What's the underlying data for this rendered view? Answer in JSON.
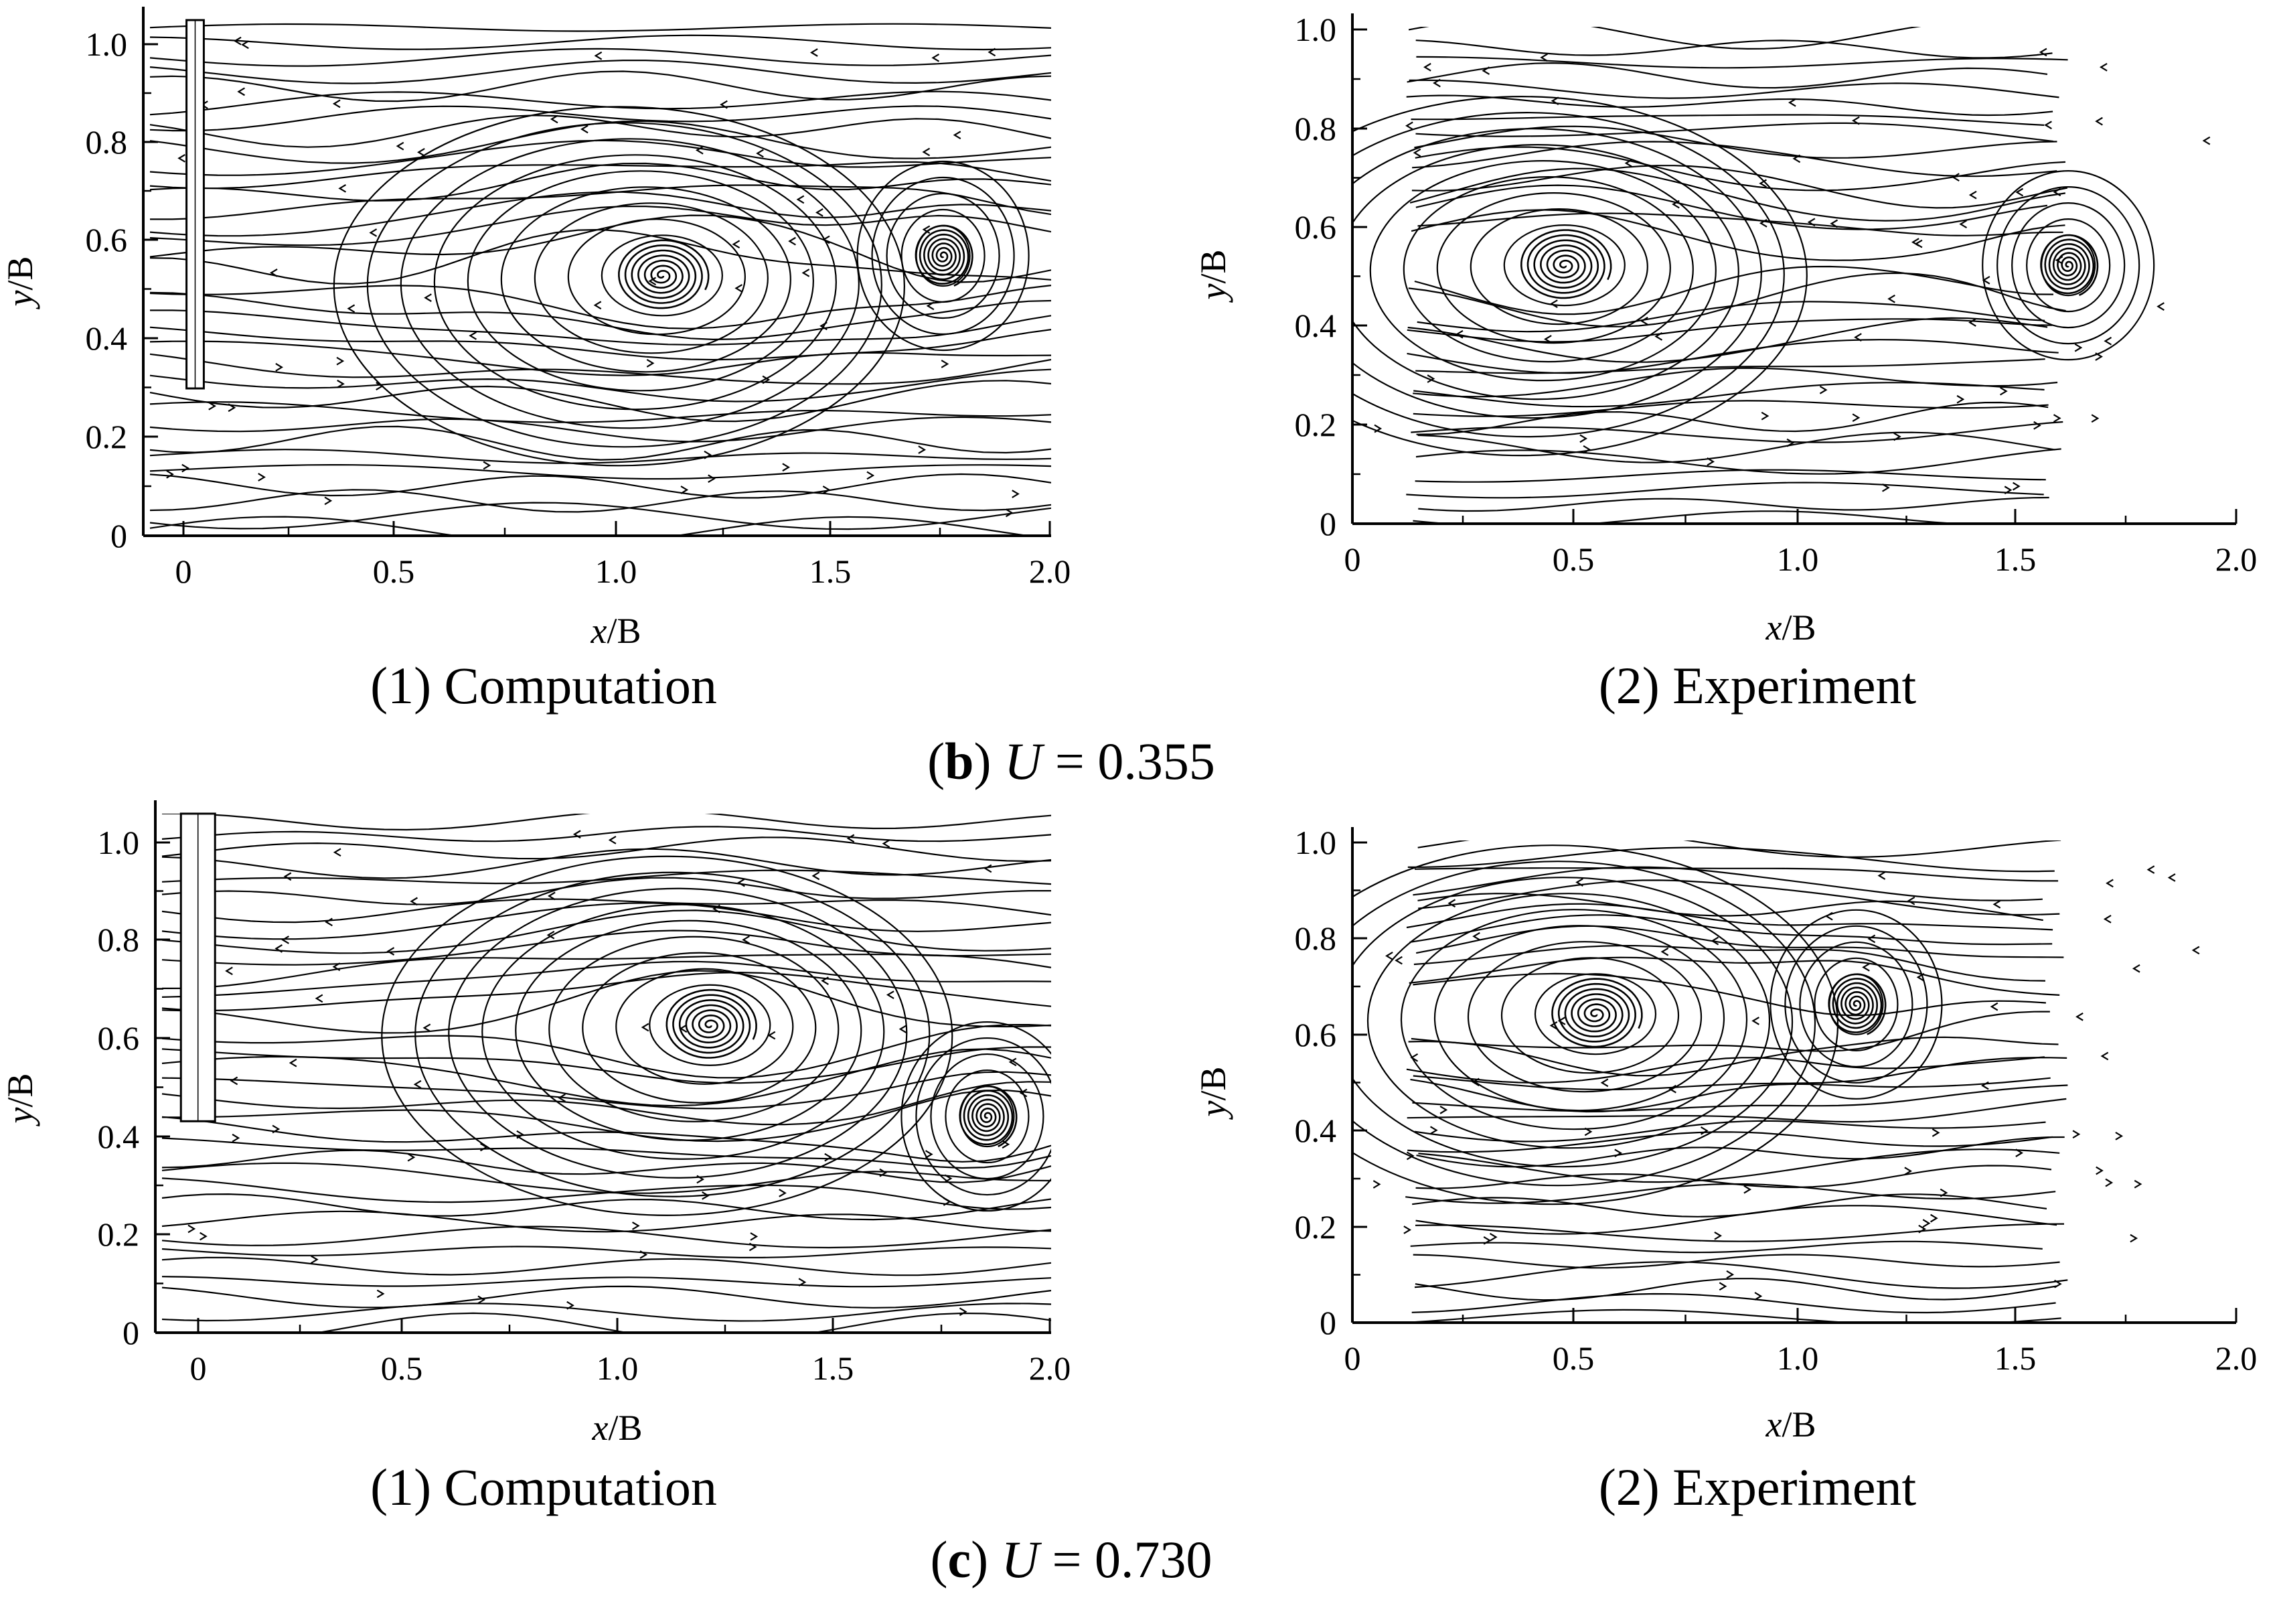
{
  "figure": {
    "panels": [
      {
        "id": "b1",
        "caption": "(1) Computation",
        "xlabel_italic": "x",
        "xlabel_rest": "/B",
        "ylabel_italic": "y",
        "ylabel_rest": "/B",
        "xticks": [
          "0",
          "0.5",
          "1.0",
          "1.5",
          "2.0"
        ],
        "yticks": [
          "0",
          "0.2",
          "0.4",
          "0.6",
          "0.8",
          "1.0"
        ]
      },
      {
        "id": "b2",
        "caption": "(2) Experiment",
        "xlabel_italic": "x",
        "xlabel_rest": "/B",
        "ylabel_italic": "y",
        "ylabel_rest": "/B",
        "xticks": [
          "0",
          "0.5",
          "1.0",
          "1.5",
          "2.0"
        ],
        "yticks": [
          "0",
          "0.2",
          "0.4",
          "0.6",
          "0.8",
          "1.0"
        ]
      },
      {
        "id": "c1",
        "caption": "(1) Computation",
        "xlabel_italic": "x",
        "xlabel_rest": "/B",
        "ylabel_italic": "y",
        "ylabel_rest": "/B",
        "xticks": [
          "0",
          "0.5",
          "1.0",
          "1.5",
          "2.0"
        ],
        "yticks": [
          "0",
          "0.2",
          "0.4",
          "0.6",
          "0.8",
          "1.0"
        ]
      },
      {
        "id": "c2",
        "caption": "(2) Experiment",
        "xlabel_italic": "x",
        "xlabel_rest": "/B",
        "ylabel_italic": "y",
        "ylabel_rest": "/B",
        "xticks": [
          "0",
          "0.5",
          "1.0",
          "1.5",
          "2.0"
        ],
        "yticks": [
          "0",
          "0.2",
          "0.4",
          "0.6",
          "0.8",
          "1.0"
        ]
      }
    ],
    "group_captions": [
      {
        "letter": "b",
        "paren_open": "(",
        "paren_close": ")",
        "var": "U",
        "eq": " = 0.355"
      },
      {
        "letter": "c",
        "paren_open": "(",
        "paren_close": ")",
        "var": "U",
        "eq": " = 0.730"
      }
    ]
  },
  "chart_data": [
    {
      "type": "streamline",
      "title": "(1) Computation",
      "condition": "U = 0.355",
      "xlabel": "x/B",
      "ylabel": "y/B",
      "xlim": [
        -0.1,
        2.0
      ],
      "ylim": [
        0,
        1.05
      ],
      "plate": {
        "x": [
          0.0,
          0.04
        ],
        "y_bottom": 0.3,
        "y_top": 1.05
      },
      "vortex_centers": [
        [
          1.1,
          0.53
        ],
        [
          1.75,
          0.57
        ]
      ]
    },
    {
      "type": "streamline",
      "title": "(2) Experiment",
      "condition": "U = 0.355",
      "xlabel": "x/B",
      "ylabel": "y/B",
      "xlim": [
        0,
        2.0
      ],
      "ylim": [
        0,
        1.0
      ],
      "vortex_centers": [
        [
          0.48,
          0.52
        ],
        [
          1.62,
          0.52
        ]
      ]
    },
    {
      "type": "streamline",
      "title": "(1) Computation",
      "condition": "U = 0.730",
      "xlabel": "x/B",
      "ylabel": "y/B",
      "xlim": [
        -0.1,
        2.0
      ],
      "ylim": [
        0,
        1.08
      ],
      "plate": {
        "x": [
          -0.04,
          0.04
        ],
        "y_bottom": 0.44,
        "y_top": 1.08
      },
      "vortex_centers": [
        [
          1.2,
          0.64
        ],
        [
          1.85,
          0.45
        ]
      ]
    },
    {
      "type": "streamline",
      "title": "(2) Experiment",
      "condition": "U = 0.730",
      "xlabel": "x/B",
      "ylabel": "y/B",
      "xlim": [
        0,
        2.0
      ],
      "ylim": [
        0,
        1.0
      ],
      "vortex_centers": [
        [
          0.55,
          0.64
        ],
        [
          1.14,
          0.66
        ]
      ]
    }
  ]
}
